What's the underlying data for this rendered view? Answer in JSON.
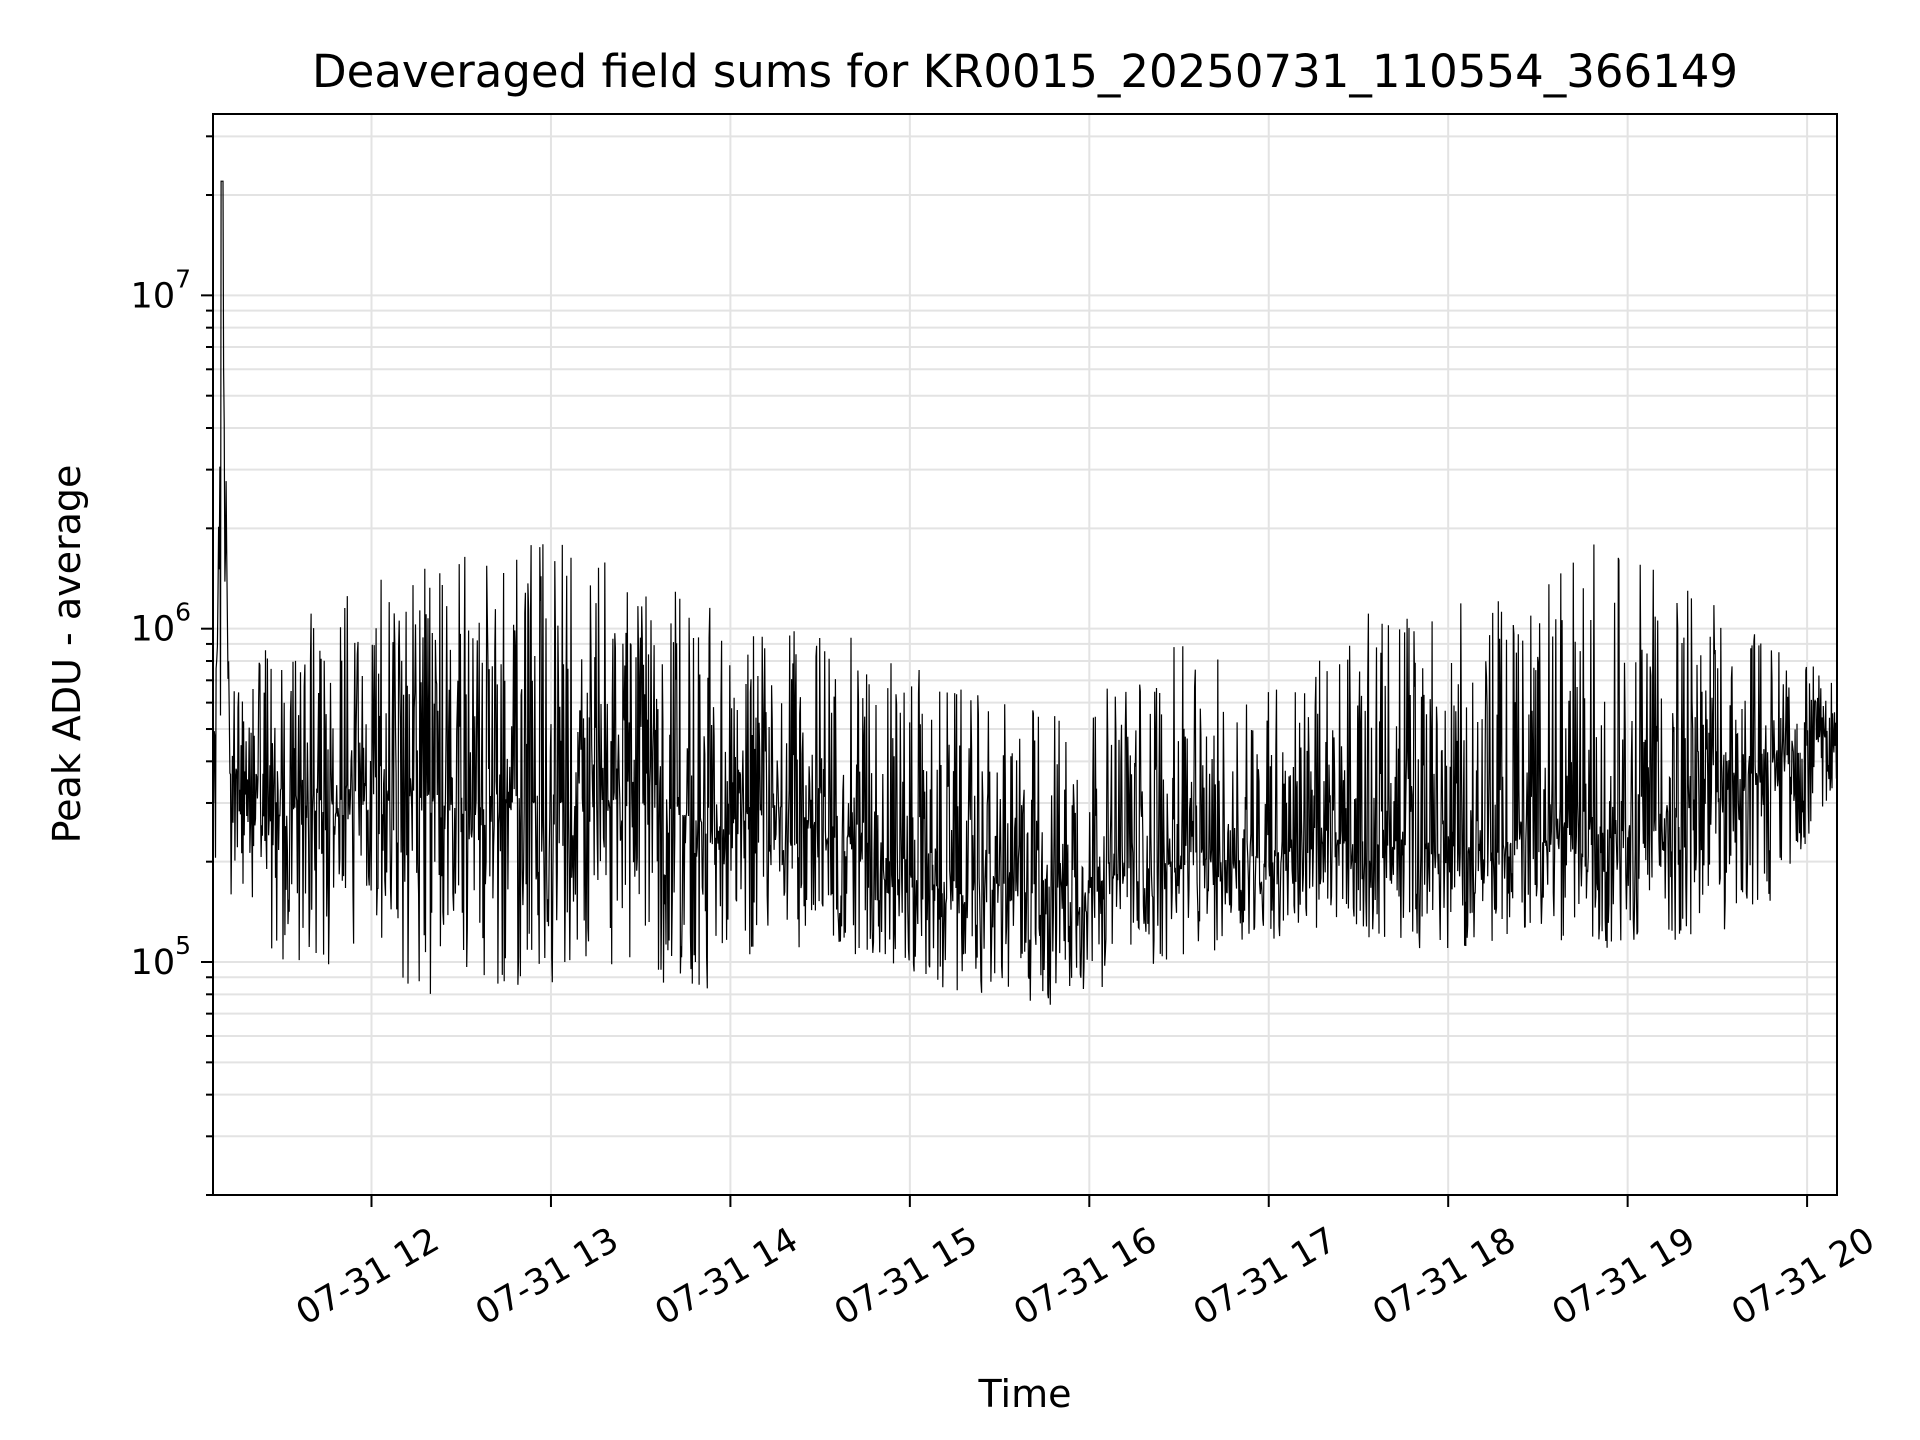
{
  "chart_data": {
    "type": "line",
    "title": "Deaveraged field sums for KR0015_20250731_110554_366149",
    "xlabel": "Time",
    "ylabel": "Peak ADU - average",
    "x_tick_labels": [
      "07-31 12",
      "07-31 13",
      "07-31 14",
      "07-31 15",
      "07-31 16",
      "07-31 17",
      "07-31 18",
      "07-31 19",
      "07-31 20"
    ],
    "y_scale": "log",
    "ylim": [
      20000,
      35000000
    ],
    "xlim": [
      "2025-07-31 11:07",
      "2025-07-31 20:10"
    ],
    "grid": true,
    "line_color": "#000000",
    "series": [
      {
        "values_note_free": true,
        "x": [
          "2025-07-31 11:07",
          "2025-07-31 11:08",
          "2025-07-31 11:10",
          "2025-07-31 11:13",
          "2025-07-31 11:15",
          "2025-07-31 11:20",
          "2025-07-31 11:25",
          "2025-07-31 11:30",
          "2025-07-31 11:40",
          "2025-07-31 11:50",
          "2025-07-31 12:00",
          "2025-07-31 12:15",
          "2025-07-31 12:30",
          "2025-07-31 12:45",
          "2025-07-31 13:00",
          "2025-07-31 13:20",
          "2025-07-31 13:40",
          "2025-07-31 14:00",
          "2025-07-31 14:15",
          "2025-07-31 14:30",
          "2025-07-31 14:45",
          "2025-07-31 15:00",
          "2025-07-31 15:15",
          "2025-07-31 15:30",
          "2025-07-31 15:45",
          "2025-07-31 16:00",
          "2025-07-31 16:15",
          "2025-07-31 16:30",
          "2025-07-31 16:45",
          "2025-07-31 17:00",
          "2025-07-31 17:15",
          "2025-07-31 17:30",
          "2025-07-31 17:45",
          "2025-07-31 18:00",
          "2025-07-31 18:15",
          "2025-07-31 18:30",
          "2025-07-31 18:45",
          "2025-07-31 19:00",
          "2025-07-31 19:15",
          "2025-07-31 19:30",
          "2025-07-31 19:45",
          "2025-07-31 20:00",
          "2025-07-31 20:10"
        ],
        "y": [
          400000,
          500000,
          22000000,
          250000,
          300000,
          260000,
          300000,
          320000,
          280000,
          300000,
          310000,
          320000,
          310000,
          300000,
          300000,
          310000,
          280000,
          250000,
          300000,
          250000,
          230000,
          180000,
          160000,
          170000,
          180000,
          170000,
          190000,
          200000,
          200000,
          210000,
          220000,
          230000,
          220000,
          210000,
          220000,
          230000,
          240000,
          250000,
          280000,
          330000,
          380000,
          450000,
          500000
        ]
      }
    ],
    "envelope": {
      "x": [
        "2025-07-31 11:10",
        "2025-07-31 11:30",
        "2025-07-31 11:50",
        "2025-07-31 12:10",
        "2025-07-31 12:30",
        "2025-07-31 12:50",
        "2025-07-31 13:10",
        "2025-07-31 13:30",
        "2025-07-31 13:50",
        "2025-07-31 14:10",
        "2025-07-31 14:30",
        "2025-07-31 14:50",
        "2025-07-31 15:10",
        "2025-07-31 15:30",
        "2025-07-31 15:50",
        "2025-07-31 16:10",
        "2025-07-31 16:30",
        "2025-07-31 16:50",
        "2025-07-31 17:10",
        "2025-07-31 17:30",
        "2025-07-31 17:50",
        "2025-07-31 18:10",
        "2025-07-31 18:30",
        "2025-07-31 18:50",
        "2025-07-31 19:10",
        "2025-07-31 19:30",
        "2025-07-31 19:50",
        "2025-07-31 20:10"
      ],
      "high": [
        800000,
        1000000,
        1300000,
        1500000,
        1700000,
        1800000,
        1800000,
        1600000,
        1200000,
        1000000,
        1000000,
        900000,
        700000,
        600000,
        600000,
        700000,
        900000,
        800000,
        700000,
        1100000,
        1200000,
        1200000,
        1300000,
        2000000,
        1500000,
        1200000,
        900000,
        700000
      ],
      "low": [
        150000,
        100000,
        90000,
        80000,
        80000,
        80000,
        90000,
        90000,
        80000,
        110000,
        110000,
        100000,
        80000,
        80000,
        70000,
        90000,
        100000,
        110000,
        120000,
        120000,
        110000,
        110000,
        120000,
        110000,
        110000,
        120000,
        150000,
        350000
      ]
    }
  }
}
